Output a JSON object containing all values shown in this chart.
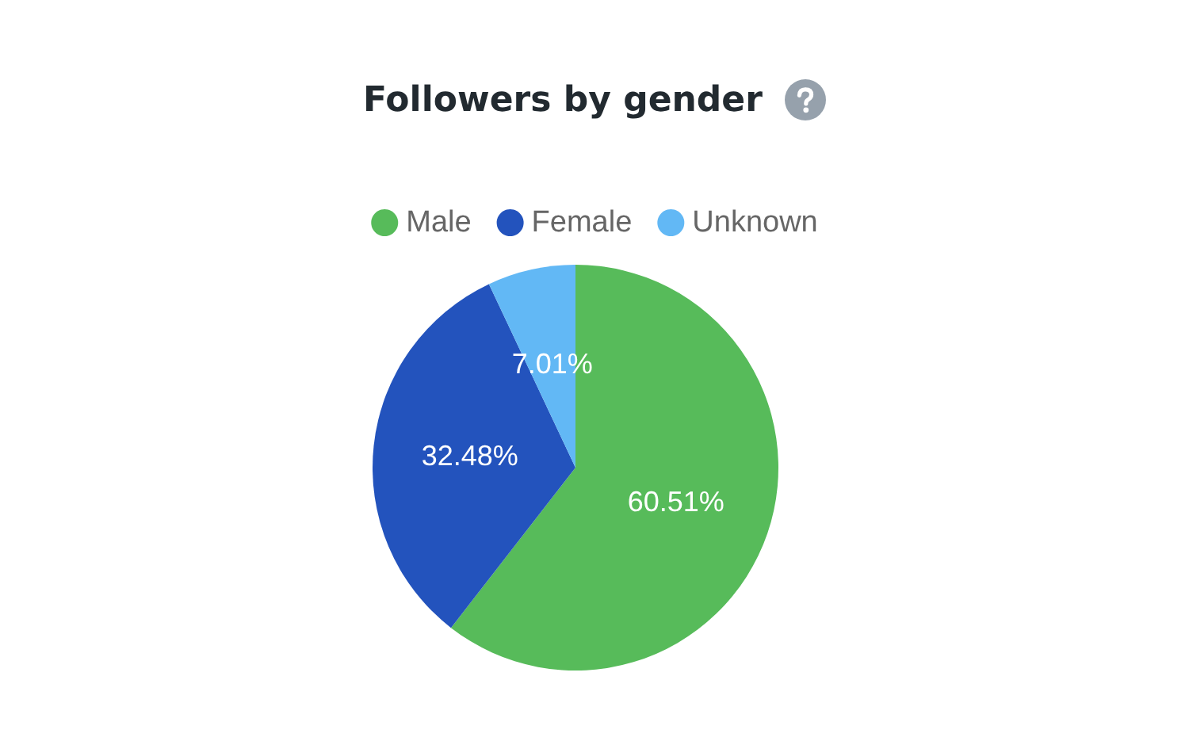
{
  "chart_data": {
    "type": "pie",
    "title": "Followers by gender",
    "categories": [
      "Male",
      "Female",
      "Unknown"
    ],
    "values": [
      60.51,
      32.48,
      7.01
    ],
    "colors": [
      "#57bb5a",
      "#2353bd",
      "#62b8f5"
    ],
    "value_labels": [
      "60.51%",
      "32.48%",
      "7.01%"
    ],
    "legend": "top"
  }
}
